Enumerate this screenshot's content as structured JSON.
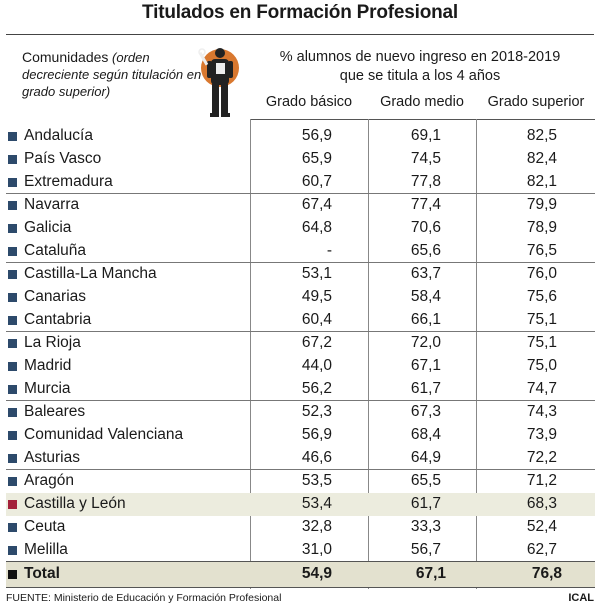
{
  "title": "Titulados en Formación Profesional",
  "regions_header": {
    "label": "Comunidades",
    "note": "(orden decreciente según titulación en grado superior)"
  },
  "metric_header": {
    "line1": "% alumnos de nuevo ingreso en 2018-2019",
    "line2": "que se titula a los 4 años"
  },
  "icon": "worker-with-wrench-icon",
  "colors": {
    "region_marker": "#2d4a6b",
    "highlight_marker": "#a3203a",
    "highlight_row": "#ececde",
    "total_row": "#e3e1cf"
  },
  "chart_data": {
    "type": "table",
    "columns": [
      "Grado básico",
      "Grado medio",
      "Grado superior"
    ],
    "rows": [
      {
        "region": "Andalucía",
        "values": [
          "56,9",
          "69,1",
          "82,5"
        ]
      },
      {
        "region": "País Vasco",
        "values": [
          "65,9",
          "74,5",
          "82,4"
        ]
      },
      {
        "region": "Extremadura",
        "values": [
          "60,7",
          "77,8",
          "82,1"
        ]
      },
      {
        "region": "Navarra",
        "values": [
          "67,4",
          "77,4",
          "79,9"
        ]
      },
      {
        "region": "Galicia",
        "values": [
          "64,8",
          "70,6",
          "78,9"
        ]
      },
      {
        "region": "Cataluña",
        "values": [
          "-",
          "65,6",
          "76,5"
        ]
      },
      {
        "region": "Castilla-La Mancha",
        "values": [
          "53,1",
          "63,7",
          "76,0"
        ]
      },
      {
        "region": "Canarias",
        "values": [
          "49,5",
          "58,4",
          "75,6"
        ]
      },
      {
        "region": "Cantabria",
        "values": [
          "60,4",
          "66,1",
          "75,1"
        ]
      },
      {
        "region": "La Rioja",
        "values": [
          "67,2",
          "72,0",
          "75,1"
        ]
      },
      {
        "region": "Madrid",
        "values": [
          "44,0",
          "67,1",
          "75,0"
        ]
      },
      {
        "region": "Murcia",
        "values": [
          "56,2",
          "61,7",
          "74,7"
        ]
      },
      {
        "region": "Baleares",
        "values": [
          "52,3",
          "67,3",
          "74,3"
        ]
      },
      {
        "region": "Comunidad Valenciana",
        "values": [
          "56,9",
          "68,4",
          "73,9"
        ]
      },
      {
        "region": "Asturias",
        "values": [
          "46,6",
          "64,9",
          "72,2"
        ]
      },
      {
        "region": "Aragón",
        "values": [
          "53,5",
          "65,5",
          "71,2"
        ]
      },
      {
        "region": "Castilla y León",
        "values": [
          "53,4",
          "61,7",
          "68,3"
        ],
        "highlight": true
      },
      {
        "region": "Ceuta",
        "values": [
          "32,8",
          "33,3",
          "52,4"
        ]
      },
      {
        "region": "Melilla",
        "values": [
          "31,0",
          "56,7",
          "62,7"
        ]
      }
    ],
    "total": {
      "region": "Total",
      "values": [
        "54,9",
        "67,1",
        "76,8"
      ]
    }
  },
  "source": "FUENTE: Ministerio de  Educación y Formación Profesional",
  "credit": "ICAL"
}
